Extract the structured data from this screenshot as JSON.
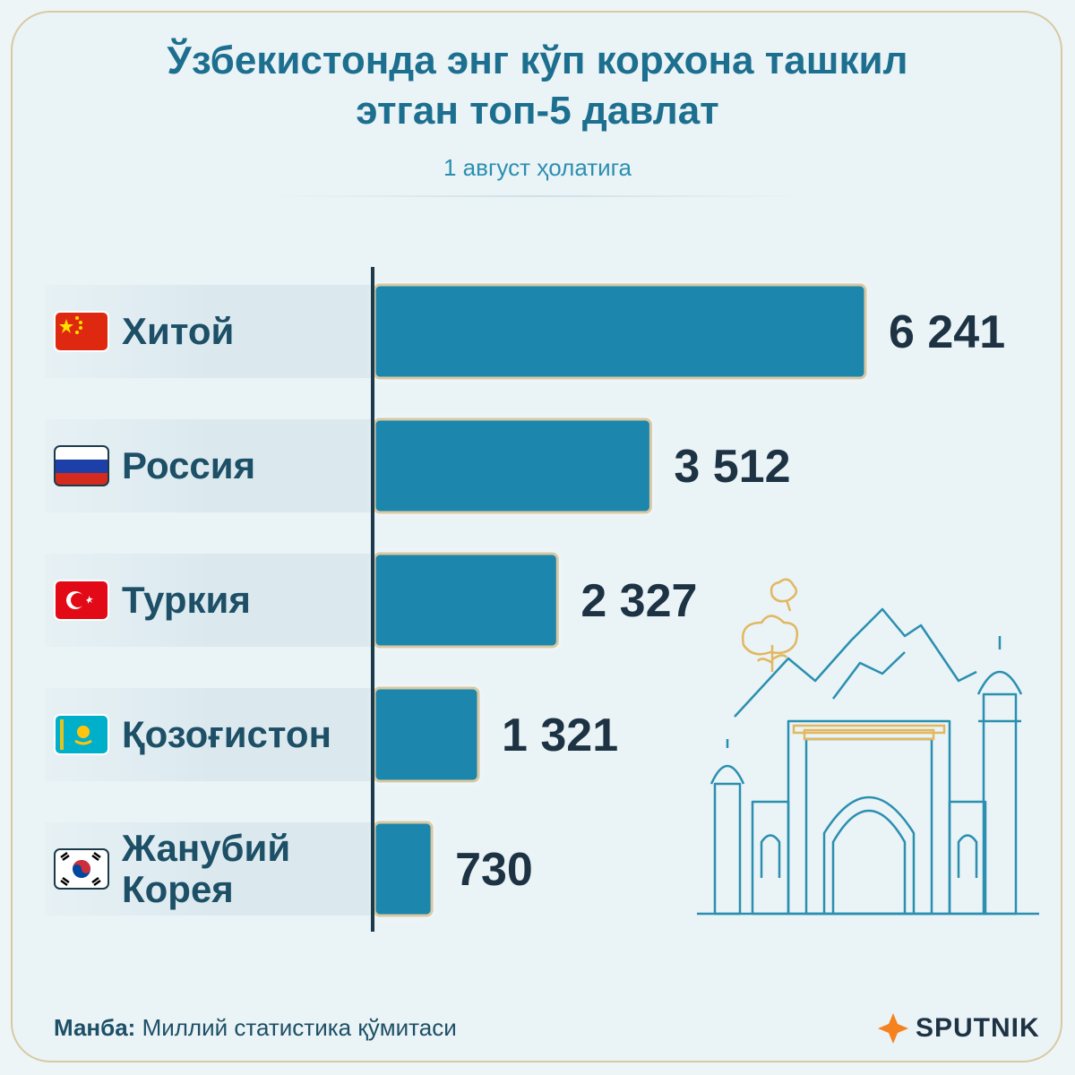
{
  "title_line1": "Ўзбекистонда энг кўп корхона ташкил",
  "title_line2": "этган топ-5 давлат",
  "subtitle": "1 август ҳолатига",
  "source_label": "Манба:",
  "source_text": "Миллий статистика қўмитаси",
  "logo": "SPUTNIK",
  "colors": {
    "bar": "#1d86ad",
    "bar_border": "#d8c9a3",
    "title": "#1d6f8f",
    "text": "#1d4f66"
  },
  "chart_data": {
    "type": "bar",
    "orientation": "horizontal",
    "categories": [
      "Хитой",
      "Россия",
      "Туркия",
      "Қозоғистон",
      "Жанубий Корея"
    ],
    "category_lines": [
      [
        "Хитой"
      ],
      [
        "Россия"
      ],
      [
        "Туркия"
      ],
      [
        "Қозоғистон"
      ],
      [
        "Жанубий",
        "Корея"
      ]
    ],
    "values": [
      6241,
      3512,
      2327,
      1321,
      730
    ],
    "value_labels": [
      "6 241",
      "3 512",
      "2 327",
      "1 321",
      "730"
    ],
    "flags": [
      "china-flag-icon",
      "russia-flag-icon",
      "turkey-flag-icon",
      "kazakhstan-flag-icon",
      "south-korea-flag-icon"
    ],
    "xlim": [
      0,
      6241
    ]
  }
}
